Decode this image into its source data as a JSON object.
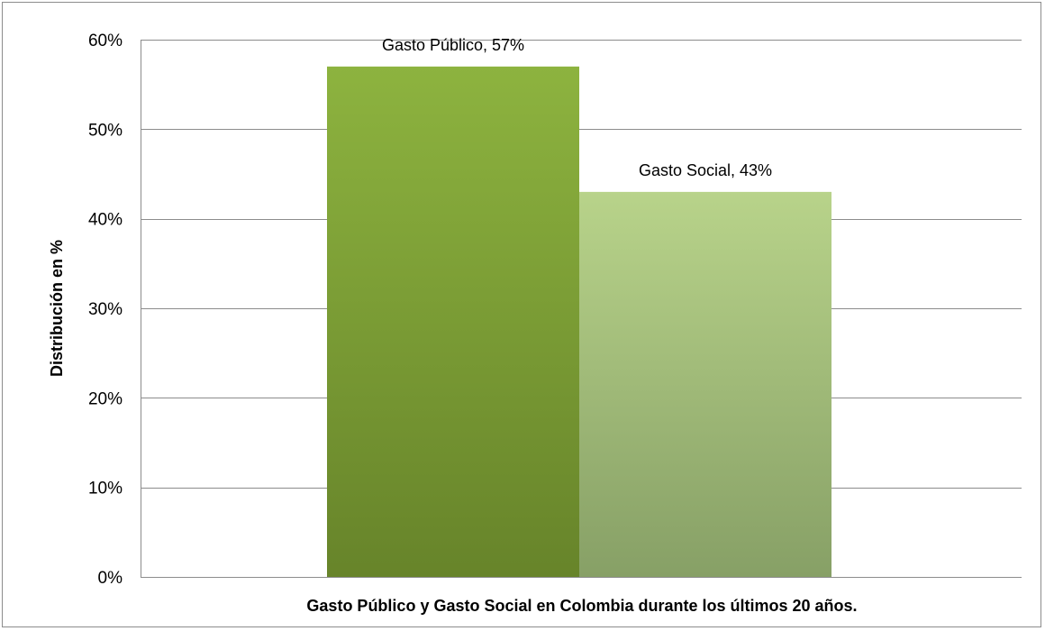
{
  "chart_data": {
    "type": "bar",
    "categories": [
      "Gasto Público",
      "Gasto Social"
    ],
    "values": [
      57,
      43
    ],
    "data_labels": [
      "Gasto Público, 57%",
      "Gasto Social, 43%"
    ],
    "title": "",
    "xlabel": "Gasto Público y Gasto Social en Colombia durante los últimos 20 años.",
    "ylabel": "Distribución en %",
    "ylim": [
      0,
      60
    ],
    "yticks": [
      0,
      10,
      20,
      30,
      40,
      50,
      60
    ],
    "ytick_labels": [
      "0%",
      "10%",
      "20%",
      "30%",
      "40%",
      "50%",
      "60%"
    ],
    "grid": true,
    "legend": "none",
    "colors": {
      "series": [
        {
          "top": "#8db33f",
          "bottom": "#67842a"
        },
        {
          "top": "#b8d38a",
          "bottom": "#87a066"
        }
      ],
      "gridline": "#8c8c8c",
      "text": "#000000"
    }
  }
}
